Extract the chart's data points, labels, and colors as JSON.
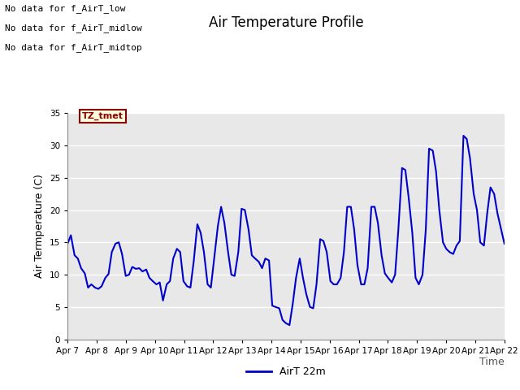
{
  "title": "Air Temperature Profile",
  "xlabel": "Time",
  "ylabel": "Air Termperature (C)",
  "ylim": [
    0,
    35
  ],
  "yticks": [
    0,
    5,
    10,
    15,
    20,
    25,
    30,
    35
  ],
  "line_color": "#0000cc",
  "line_width": 1.5,
  "legend_label": "AirT 22m",
  "no_data_texts": [
    "No data for f_AirT_low",
    "No data for f_AirT_midlow",
    "No data for f_AirT_midtop"
  ],
  "tz_label": "TZ_tmet",
  "x_tick_labels": [
    "Apr 7",
    "Apr 8",
    "Apr 9",
    "Apr 10",
    "Apr 11",
    "Apr 12",
    "Apr 13",
    "Apr 14",
    "Apr 15",
    "Apr 16",
    "Apr 17",
    "Apr 18",
    "Apr 19",
    "Apr 20",
    "Apr 21",
    "Apr 22"
  ],
  "time_series": [
    0.0,
    14.8,
    0.08,
    16.1,
    0.17,
    13.0,
    0.25,
    12.5,
    0.33,
    11.0,
    0.42,
    10.2,
    0.5,
    8.0,
    0.58,
    8.5,
    0.67,
    8.0,
    0.75,
    7.8,
    0.83,
    8.2,
    0.92,
    9.5,
    1.0,
    10.1,
    1.08,
    13.5,
    1.17,
    14.8,
    1.25,
    15.0,
    1.33,
    13.2,
    1.42,
    9.8,
    1.5,
    10.0,
    1.58,
    11.2,
    1.67,
    10.9,
    1.75,
    11.0,
    1.83,
    10.5,
    1.92,
    10.8,
    2.0,
    9.5,
    2.08,
    9.0,
    2.17,
    8.5,
    2.25,
    8.8,
    2.33,
    6.0,
    2.42,
    8.5,
    2.5,
    9.0,
    2.58,
    12.5,
    2.67,
    14.0,
    2.75,
    13.5,
    2.83,
    9.0,
    2.92,
    8.2,
    3.0,
    8.0,
    3.08,
    12.0,
    3.17,
    17.8,
    3.25,
    16.5,
    3.33,
    13.5,
    3.42,
    8.5,
    3.5,
    8.0,
    3.58,
    12.5,
    3.67,
    17.5,
    3.75,
    20.5,
    3.83,
    18.0,
    3.92,
    13.5,
    4.0,
    10.0,
    4.08,
    9.8,
    4.17,
    13.5,
    4.25,
    20.2,
    4.33,
    20.0,
    4.42,
    17.0,
    4.5,
    13.0,
    4.58,
    12.5,
    4.67,
    12.0,
    4.75,
    11.0,
    4.83,
    12.5,
    4.92,
    12.2,
    5.0,
    5.2,
    5.08,
    5.0,
    5.17,
    4.8,
    5.25,
    3.0,
    5.33,
    2.5,
    5.42,
    2.2,
    5.5,
    5.5,
    5.58,
    9.5,
    5.67,
    12.5,
    5.75,
    9.5,
    5.83,
    7.0,
    5.92,
    5.0,
    6.0,
    4.8,
    6.08,
    8.5,
    6.17,
    15.5,
    6.25,
    15.2,
    6.33,
    13.5,
    6.42,
    9.0,
    6.5,
    8.5,
    6.58,
    8.5,
    6.67,
    9.5,
    6.75,
    13.5,
    6.83,
    20.5,
    6.92,
    20.5,
    7.0,
    17.0,
    7.08,
    11.5,
    7.17,
    8.5,
    7.25,
    8.5,
    7.33,
    11.0,
    7.42,
    20.5,
    7.5,
    20.5,
    7.58,
    18.0,
    7.67,
    13.0,
    7.75,
    10.2,
    7.83,
    9.5,
    7.92,
    8.8,
    8.0,
    10.0,
    8.08,
    17.0,
    8.17,
    26.5,
    8.25,
    26.2,
    8.33,
    22.0,
    8.42,
    16.5,
    8.5,
    9.5,
    8.58,
    8.5,
    8.67,
    10.0,
    8.75,
    17.0,
    8.83,
    29.5,
    8.92,
    29.2,
    9.0,
    26.0,
    9.08,
    20.0,
    9.17,
    15.0,
    9.25,
    14.0,
    9.33,
    13.5,
    9.42,
    13.2,
    9.5,
    14.5,
    9.58,
    15.2,
    9.67,
    31.5,
    9.75,
    31.0,
    9.83,
    28.0,
    9.92,
    22.5,
    10.0,
    20.0,
    10.08,
    15.0,
    10.17,
    14.5,
    10.25,
    19.5,
    10.33,
    23.5,
    10.42,
    22.5,
    10.5,
    19.5,
    10.67,
    14.8
  ]
}
